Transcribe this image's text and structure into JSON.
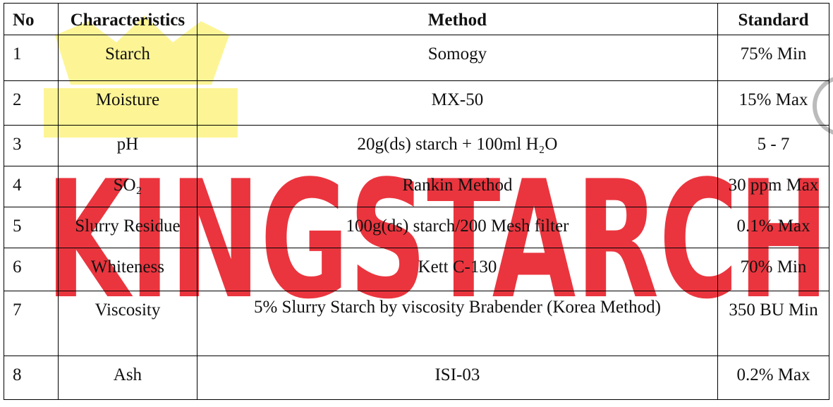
{
  "watermark": "KINGSTARCH",
  "table": {
    "header": [
      "No",
      "Characteristics",
      "Method",
      "Standard"
    ],
    "rows": [
      [
        "1",
        "Starch",
        "Somogy",
        "75% Min"
      ],
      [
        "2",
        "Moisture",
        "MX-50",
        "15% Max"
      ],
      [
        "3",
        "pH",
        "20g(ds) starch + 100ml H₂O",
        "5 - 7"
      ],
      [
        "4",
        "SO₂",
        "Rankin Method",
        "30 ppm Max"
      ],
      [
        "5",
        "Slurry Residue",
        "100g(ds) starch/200 Mesh filter",
        "0.1% Max"
      ],
      [
        "6",
        "Whiteness",
        "Kett C-130",
        "70% Min"
      ],
      [
        "7",
        "Viscosity",
        "5% Slurry Starch by viscosity Brabender (Korea Method)",
        "350 BU Min"
      ],
      [
        "8",
        "Ash",
        "ISI-03",
        "0.2% Max"
      ]
    ]
  }
}
